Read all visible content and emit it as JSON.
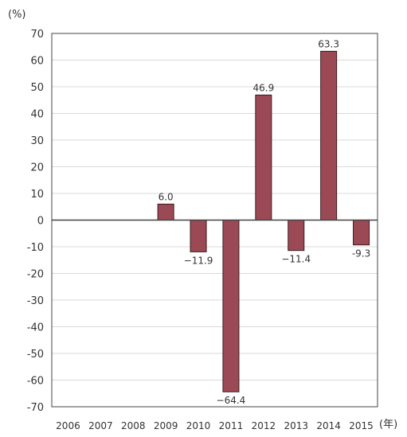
{
  "chart_data": {
    "type": "bar",
    "y_unit": "(%)",
    "x_unit": "(年)",
    "categories": [
      "2006",
      "2007",
      "2008",
      "2009",
      "2010",
      "2011",
      "2012",
      "2013",
      "2014",
      "2015"
    ],
    "values": [
      null,
      null,
      null,
      6.0,
      -11.9,
      -64.4,
      46.9,
      -11.4,
      63.3,
      -9.3
    ],
    "data_labels": [
      "",
      "",
      "",
      "6.0",
      "−11.9",
      "−64.4",
      "46.9",
      "−11.4",
      "63.3",
      "-9.3"
    ],
    "ylim": [
      -70,
      70
    ],
    "y_ticks": [
      70,
      60,
      50,
      40,
      30,
      20,
      10,
      0,
      -10,
      -20,
      -30,
      -40,
      -50,
      -60,
      -70
    ],
    "grid": true,
    "colors": {
      "bar": "#9b4a55",
      "bar_edge": "#3a1a1e",
      "grid": "#d9d9d9",
      "axis": "#444444"
    }
  }
}
